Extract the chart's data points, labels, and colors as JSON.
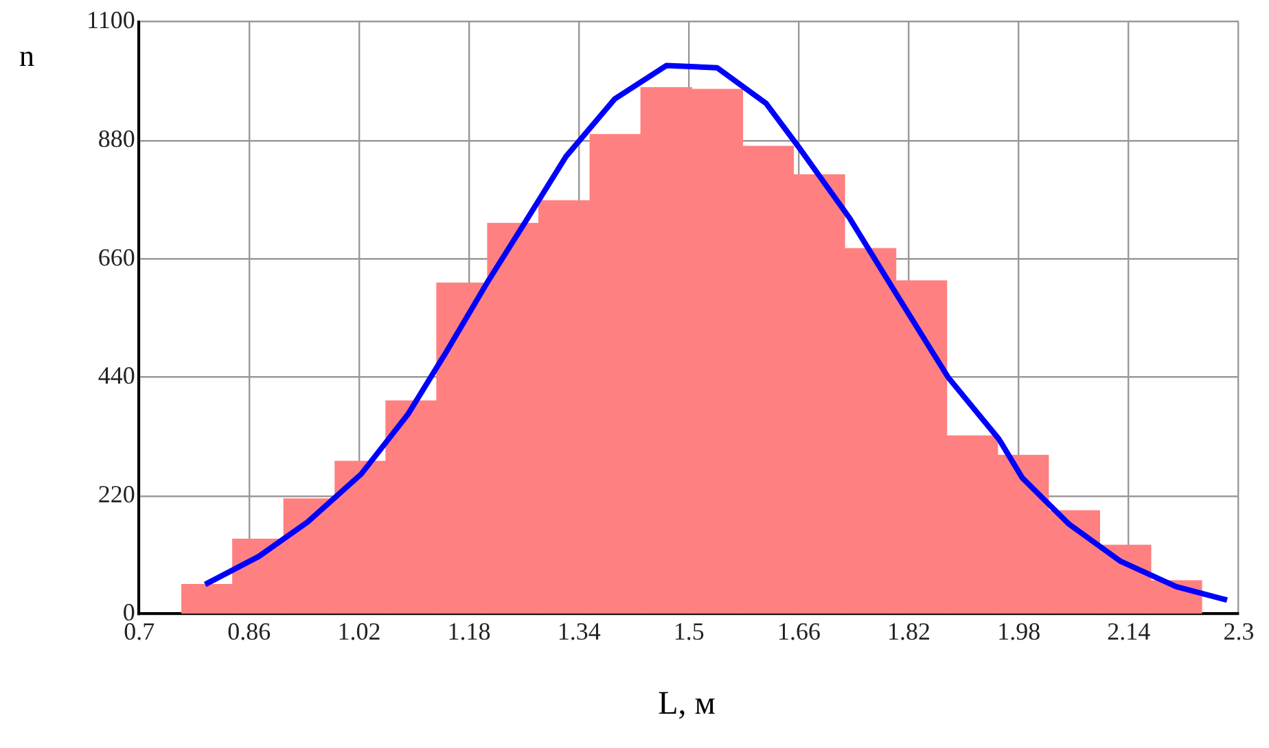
{
  "chart_data": {
    "type": "histogram",
    "xlabel": "L, м",
    "ylabel": "n",
    "xlim": [
      0.7,
      2.3
    ],
    "xticks": [
      0.7,
      0.86,
      1.02,
      1.18,
      1.34,
      1.5,
      1.66,
      1.82,
      1.98,
      2.14,
      2.3
    ],
    "ylim": [
      0,
      1100
    ],
    "yticks": [
      0,
      220,
      440,
      660,
      880,
      1100
    ],
    "grid": true,
    "series": [
      {
        "type": "histogram",
        "color": "#ff8080",
        "bins": [
          0.762,
          0.836,
          0.91,
          0.985,
          1.059,
          1.133,
          1.207,
          1.281,
          1.356,
          1.43,
          1.504,
          1.578,
          1.652,
          1.727,
          1.801,
          1.875,
          1.949,
          2.023,
          2.098,
          2.172,
          2.246
        ],
        "values": [
          55,
          139,
          214,
          284,
          396,
          615,
          726,
          768,
          891,
          978,
          975,
          869,
          816,
          679,
          619,
          331,
          295,
          192,
          128,
          62
        ]
      },
      {
        "type": "line",
        "color": "#0000ff",
        "x": [
          0.796,
          0.874,
          0.945,
          1.023,
          1.091,
          1.145,
          1.206,
          1.267,
          1.321,
          1.392,
          1.467,
          1.541,
          1.612,
          1.66,
          1.734,
          1.802,
          1.877,
          1.951,
          1.985,
          2.053,
          2.128,
          2.209,
          2.283
        ],
        "values": [
          55,
          107,
          171,
          260,
          371,
          483,
          615,
          739,
          850,
          957,
          1019,
          1015,
          949,
          867,
          735,
          594,
          440,
          325,
          253,
          167,
          98,
          51,
          26
        ]
      }
    ]
  }
}
